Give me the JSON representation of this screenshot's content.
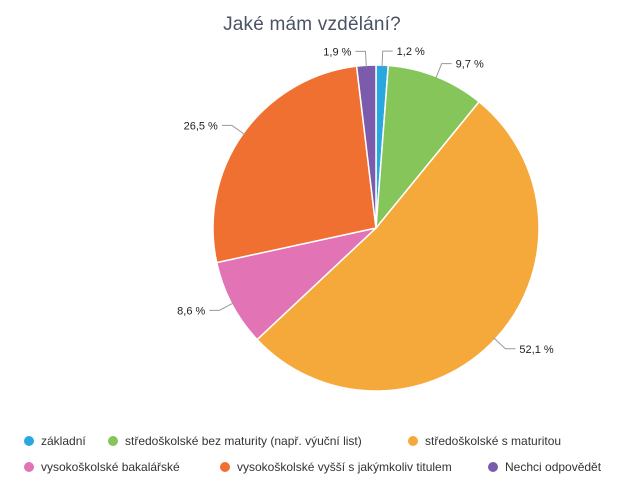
{
  "chart_data": {
    "type": "pie",
    "title": "Jaké mám vzdělání?",
    "slices": [
      {
        "name": "základní",
        "value": 1.2,
        "label": "1,2 %",
        "color": "#29a8e0"
      },
      {
        "name": "středoškolské bez maturity (např. výuční list)",
        "value": 9.7,
        "label": "9,7 %",
        "color": "#86c55a"
      },
      {
        "name": "středoškolské s maturitou",
        "value": 52.1,
        "label": "52,1 %",
        "color": "#f6a93b"
      },
      {
        "name": "vysokoškolské bakalářské",
        "value": 8.6,
        "label": "8,6 %",
        "color": "#e274b5"
      },
      {
        "name": "vysokoškolské vyšší s jakýmkoliv titulem",
        "value": 26.5,
        "label": "26,5 %",
        "color": "#ef7030"
      },
      {
        "name": "Nechci odpovědět",
        "value": 1.9,
        "label": "1,9 %",
        "color": "#7b5bab"
      }
    ],
    "legend_position": "bottom"
  }
}
